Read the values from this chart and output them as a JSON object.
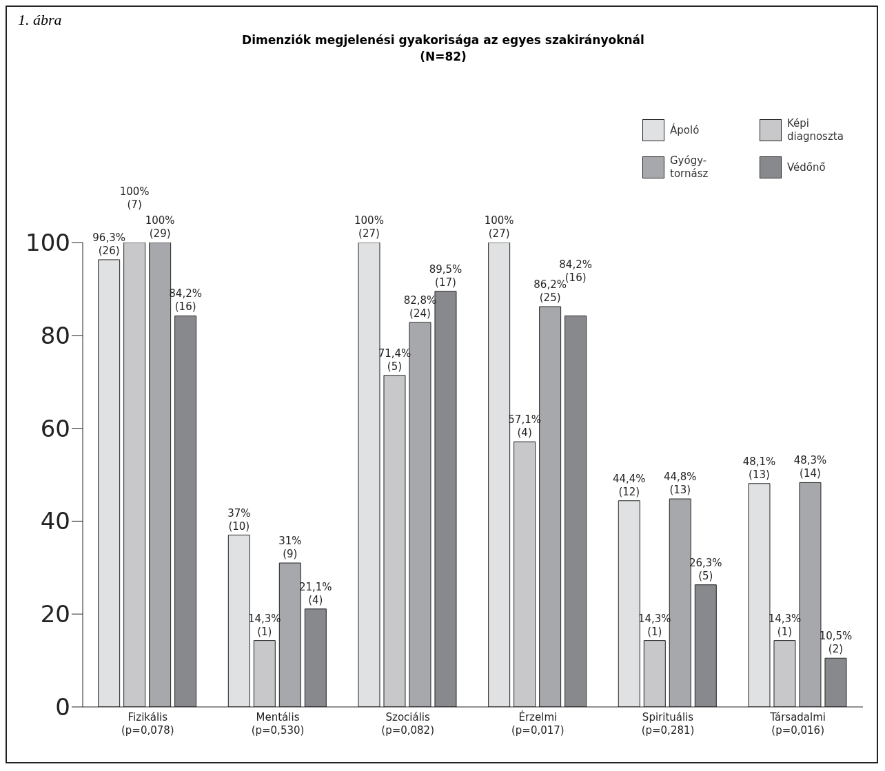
{
  "chart_data": {
    "type": "bar",
    "title": "Dimenziók megjelenési gyakorisága az egyes szakirányoknál",
    "subtitle": "(N=82)",
    "annotations": [
      "1. ábra"
    ],
    "categories": [
      "Fizikális\n(p=0,078)",
      "Mentális\n(p=0,530)",
      "Szociális\n(p=0,082)",
      "Érzelmi\n(p=0,017)",
      "Spirituális\n(p=0,281)",
      "Társadalmi\n(p=0,016)"
    ],
    "series": [
      {
        "name": "Ápoló",
        "color": "#e0e1e3",
        "values": [
          96.3,
          37,
          100,
          100,
          44.4,
          48.1
        ],
        "value_labels": [
          "96,3%\n(26)",
          "37%\n(10)",
          "100%\n(27)",
          "100%\n(27)",
          "44,4%\n(12)",
          "48,1%\n(13)"
        ]
      },
      {
        "name": "Képi\ndiagnoszta",
        "color": "#c8c8ca",
        "values": [
          100,
          14.3,
          71.4,
          57.1,
          14.3,
          14.3
        ],
        "value_labels": [
          "100%\n(7)",
          "14,3%\n(1)",
          "71,4%\n(5)",
          "57,1%\n(4)",
          "14,3%\n(1)",
          "14,3%\n(1)"
        ]
      },
      {
        "name": "Gyógy-\ntornász",
        "color": "#a7a8ab",
        "values": [
          100,
          31,
          82.8,
          86.2,
          44.8,
          48.3
        ],
        "value_labels": [
          "100%\n(29)",
          "31%\n(9)",
          "82,8%\n(24)",
          "86,2%\n(25)",
          "44,8%\n(13)",
          "48,3%\n(14)"
        ]
      },
      {
        "name": "Védőnő",
        "color": "#88898d",
        "values": [
          84.2,
          21.1,
          89.5,
          84.2,
          26.3,
          10.5
        ],
        "value_labels": [
          "84,2%\n(16)",
          "21,1%\n(4)",
          "89,5%\n(17)",
          "84,2%\n(16)",
          "26,3%\n(5)",
          "10,5%\n(2)"
        ]
      }
    ],
    "ylim": [
      0,
      100
    ],
    "yticks": [
      0,
      20,
      40,
      60,
      80,
      100
    ],
    "grid": false,
    "legend": "top right"
  }
}
